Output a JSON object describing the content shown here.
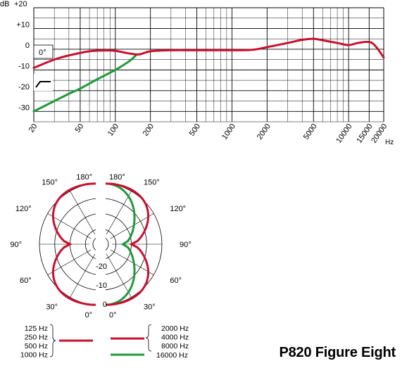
{
  "title": "P820 Figure Eight",
  "colors": {
    "red": "#c8102e",
    "green": "#1f9a3a",
    "grid": "#000000"
  },
  "chart_data": [
    {
      "type": "line",
      "y_unit_label": "dB",
      "x_unit_label": "Hz",
      "x_scale": "log",
      "xlim": [
        20,
        20000
      ],
      "ylim": [
        -35,
        20
      ],
      "y_ticks": [
        {
          "value": 20,
          "label": "+20"
        },
        {
          "value": 10,
          "label": "+10"
        },
        {
          "value": 0,
          "label": "0"
        },
        {
          "value": -10,
          "label": "-10"
        },
        {
          "value": -20,
          "label": "-20"
        },
        {
          "value": -30,
          "label": "-30"
        }
      ],
      "x_ticks": [
        "20",
        "50",
        "100",
        "200",
        "500",
        "1000",
        "2000",
        "5000",
        "10000",
        "15000",
        "20000"
      ],
      "annotation": "0°",
      "grid": true,
      "series": [
        {
          "color": "#c8102e",
          "x": [
            20,
            30,
            40,
            60,
            80,
            100,
            130,
            160,
            200,
            300,
            500,
            1000,
            1500,
            2000,
            3000,
            4000,
            5000,
            6000,
            8000,
            10000,
            12000,
            15000,
            17000,
            20000
          ],
          "y": [
            -9,
            -5,
            -3,
            -1,
            -0.6,
            -0.8,
            -2,
            -2.5,
            -1,
            -0.5,
            -0.5,
            -0.5,
            -0.3,
            1,
            3,
            4.5,
            5,
            4.3,
            3,
            2,
            3,
            3.5,
            1.5,
            -4
          ]
        },
        {
          "color": "#1f9a3a",
          "x": [
            20,
            30,
            40,
            50,
            70,
            100,
            130,
            150
          ],
          "y": [
            -30,
            -25,
            -21.5,
            -19,
            -14.5,
            -10,
            -6,
            -3
          ]
        }
      ]
    },
    {
      "type": "polar",
      "angle_labels_left": [
        "180°",
        "150°",
        "120°",
        "90°",
        "60°",
        "30°",
        "0°"
      ],
      "angle_labels_right": [
        "180°",
        "150°",
        "120°",
        "90°",
        "60°",
        "30°",
        "0°"
      ],
      "radial_ticks": [
        "-20",
        "-10",
        "0"
      ],
      "legend_left": [
        "125 Hz",
        "250 Hz",
        "500 Hz",
        "1000 Hz"
      ],
      "legend_right_red": [
        "2000 Hz",
        "4000 Hz",
        "8000 Hz"
      ],
      "legend_right_green": "16000 Hz",
      "series": [
        {
          "side": "left",
          "color": "#c8102e",
          "pattern": "figure-eight"
        },
        {
          "side": "right",
          "color": "#c8102e",
          "pattern": "figure-eight"
        },
        {
          "side": "right",
          "color": "#1f9a3a",
          "pattern": "narrowed-eight"
        }
      ]
    }
  ]
}
